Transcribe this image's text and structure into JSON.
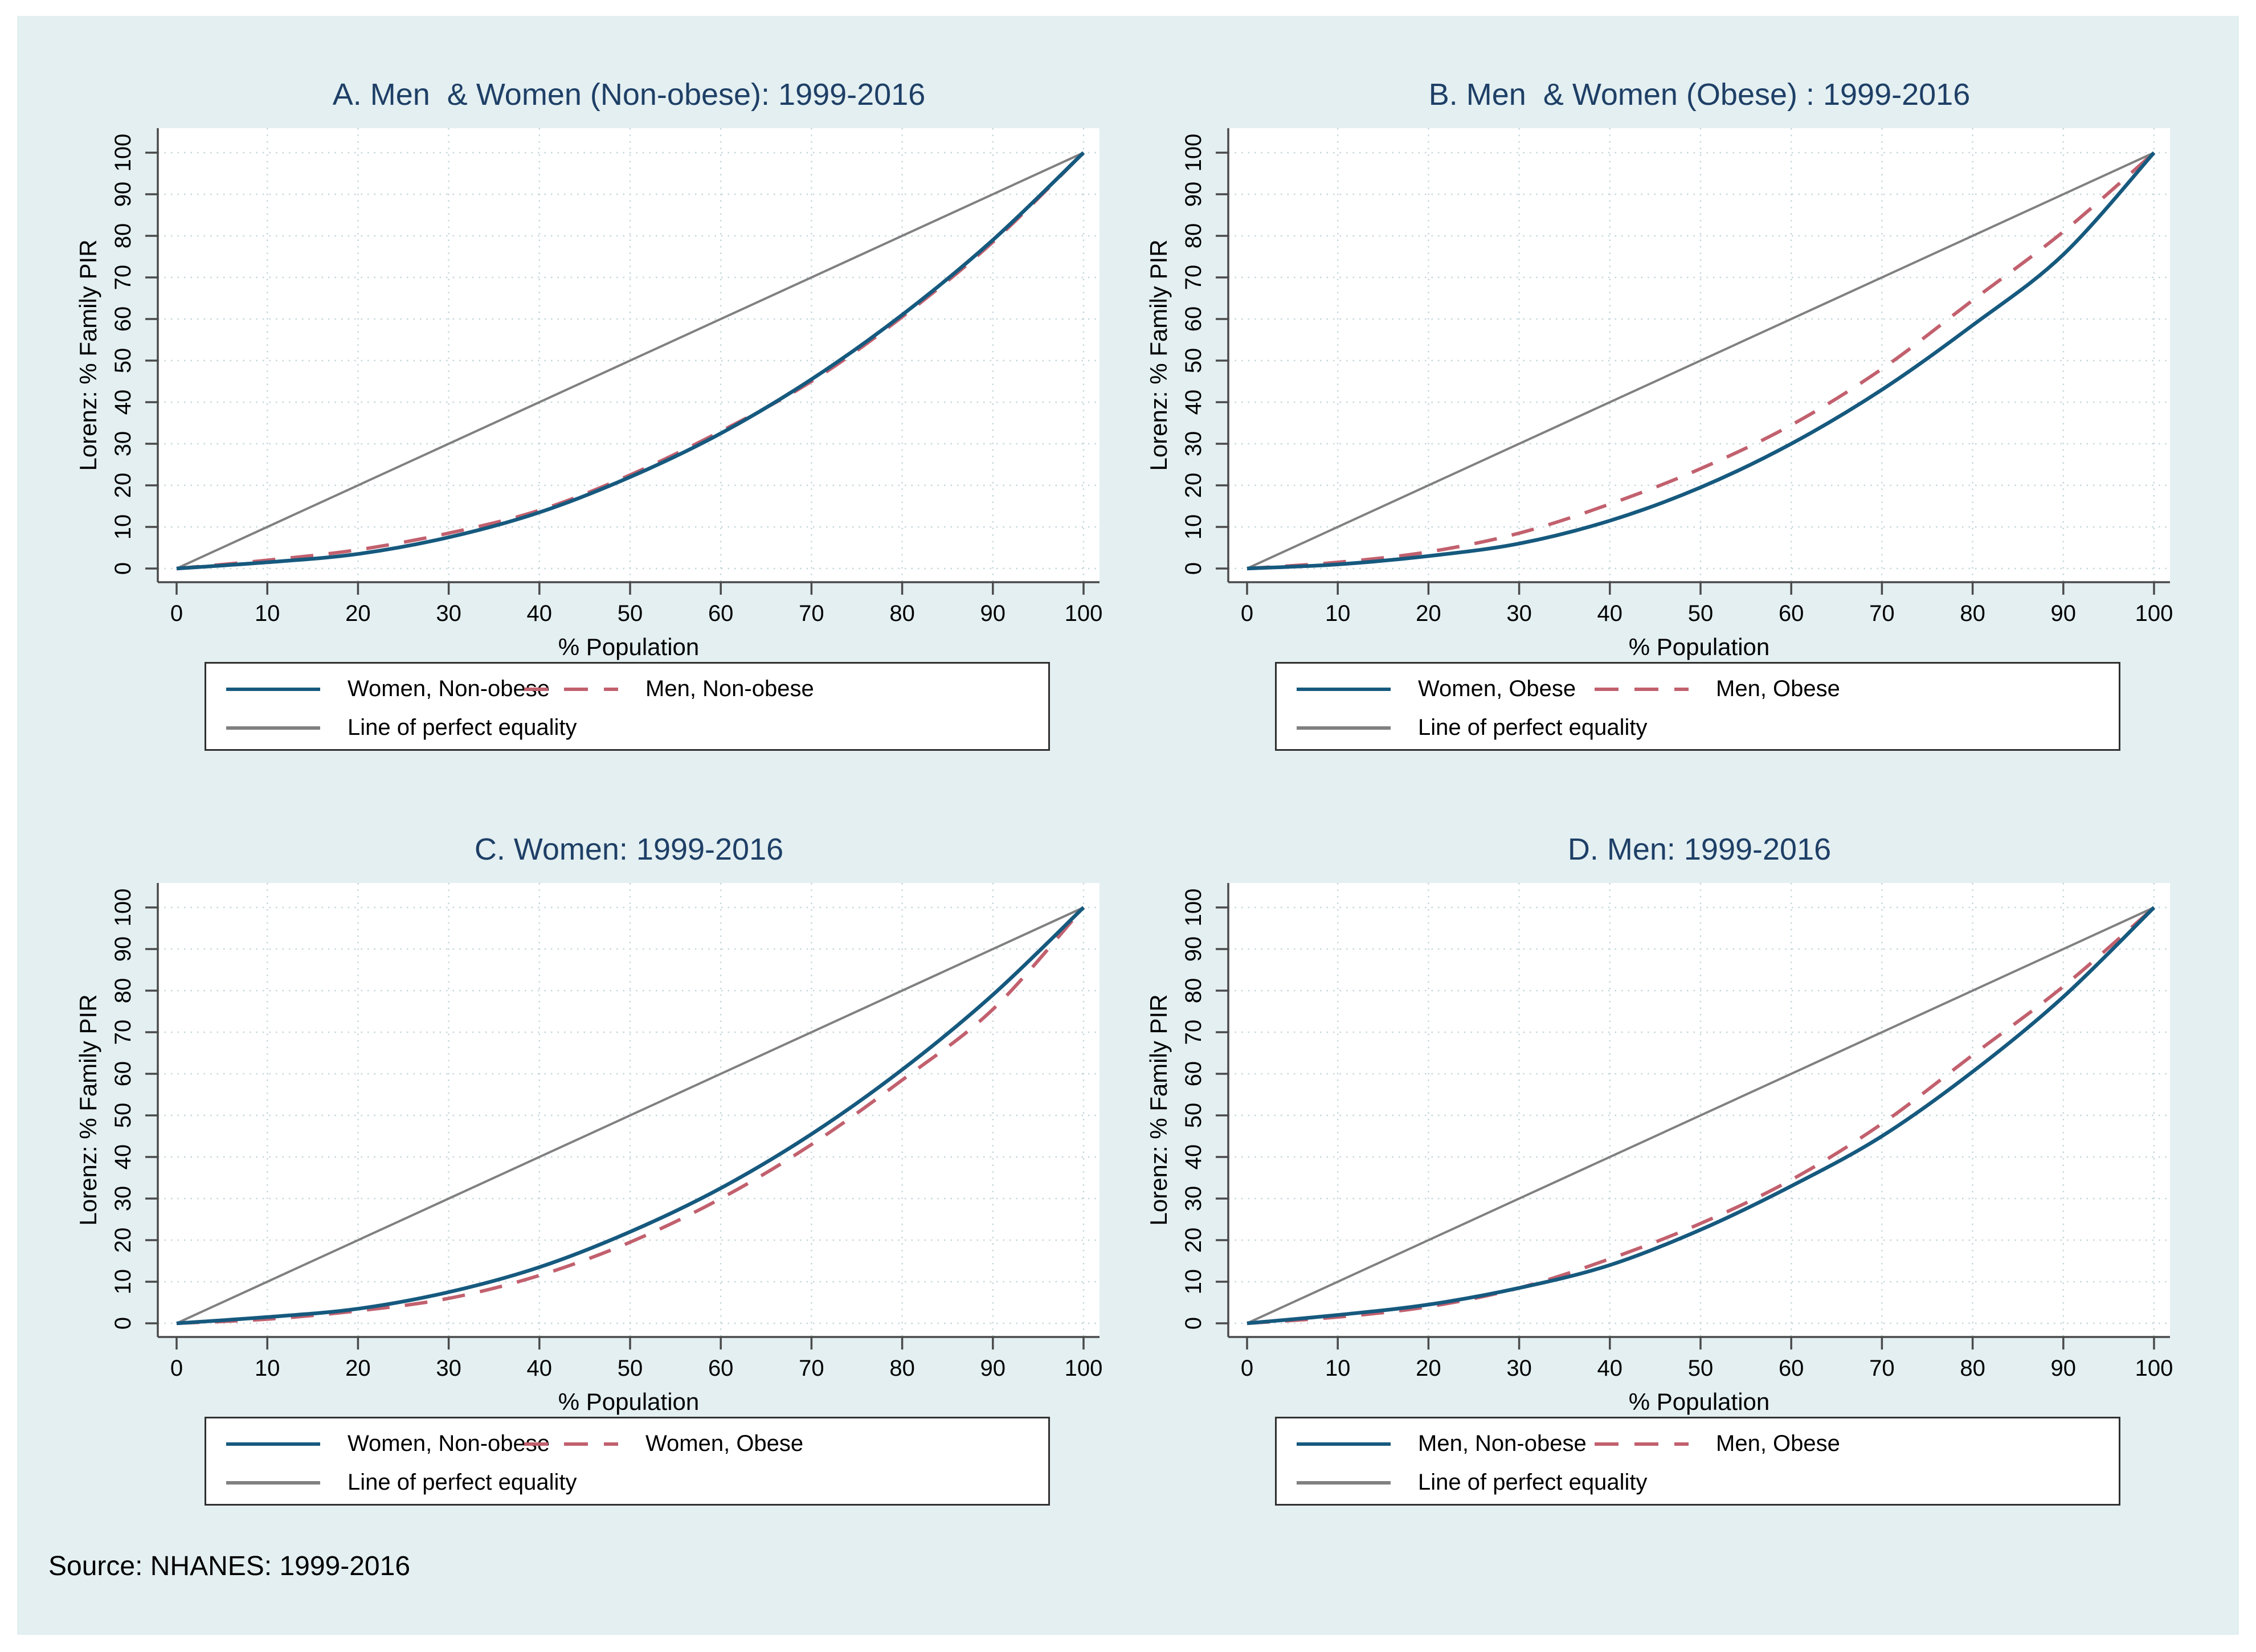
{
  "figure": {
    "page_background": "#ffffff",
    "background": "#e3eff1",
    "plot_background": "#ffffff",
    "axis_color": "#4a4a4a",
    "grid_color": "#c3d6da",
    "title_color": "#1e3f66",
    "tick_label_color": "#000000",
    "legend_border_color": "#303030"
  },
  "source": {
    "text": "Source: NHANES: 1999-2016"
  },
  "chart_data": [
    {
      "panel": "A",
      "type": "line",
      "title": "A. Men  & Women (Non-obese): 1999-2016",
      "xlabel": "% Population",
      "ylabel": "Lorenz: % Family PIR",
      "xlim": [
        0,
        100
      ],
      "ylim": [
        0,
        100
      ],
      "grid": true,
      "legend_position": "below",
      "xticks": [
        0,
        10,
        20,
        30,
        40,
        50,
        60,
        70,
        80,
        90,
        100
      ],
      "yticks": [
        0,
        10,
        20,
        30,
        40,
        50,
        60,
        70,
        80,
        90,
        100
      ],
      "x": [
        0,
        10,
        20,
        30,
        40,
        50,
        60,
        70,
        80,
        90,
        100
      ],
      "series": [
        {
          "name": "Women, Non-obese",
          "color": "#16597e",
          "style": "solid",
          "values": [
            0,
            1.5,
            3.5,
            7.5,
            13.5,
            22,
            32.5,
            45.5,
            61,
            79,
            100
          ]
        },
        {
          "name": "Men, Non-obese",
          "color": "#c2606e",
          "style": "dashed",
          "values": [
            0,
            2,
            4.5,
            8.5,
            14,
            22.5,
            33,
            45,
            60.5,
            78.5,
            100
          ]
        },
        {
          "name": "Line of perfect equality",
          "color": "#808080",
          "style": "solid",
          "values": [
            0,
            10,
            20,
            30,
            40,
            50,
            60,
            70,
            80,
            90,
            100
          ]
        }
      ]
    },
    {
      "panel": "B",
      "type": "line",
      "title": "B. Men  & Women (Obese) : 1999-2016",
      "xlabel": "% Population",
      "ylabel": "Lorenz: % Family PIR",
      "xlim": [
        0,
        100
      ],
      "ylim": [
        0,
        100
      ],
      "grid": true,
      "legend_position": "below",
      "xticks": [
        0,
        10,
        20,
        30,
        40,
        50,
        60,
        70,
        80,
        90,
        100
      ],
      "yticks": [
        0,
        10,
        20,
        30,
        40,
        50,
        60,
        70,
        80,
        90,
        100
      ],
      "x": [
        0,
        10,
        20,
        30,
        40,
        50,
        60,
        70,
        80,
        90,
        100
      ],
      "series": [
        {
          "name": "Women, Obese",
          "color": "#16597e",
          "style": "solid",
          "values": [
            0,
            1,
            3,
            6,
            11.5,
            19.5,
            30,
            43,
            58.5,
            75.5,
            100
          ]
        },
        {
          "name": "Men, Obese",
          "color": "#c2606e",
          "style": "dashed",
          "values": [
            0,
            1.5,
            4,
            8.5,
            15.5,
            24,
            34.5,
            48,
            64.5,
            81,
            100
          ]
        },
        {
          "name": "Line of perfect equality",
          "color": "#808080",
          "style": "solid",
          "values": [
            0,
            10,
            20,
            30,
            40,
            50,
            60,
            70,
            80,
            90,
            100
          ]
        }
      ]
    },
    {
      "panel": "C",
      "type": "line",
      "title": "C. Women: 1999-2016",
      "xlabel": "% Population",
      "ylabel": "Lorenz: % Family PIR",
      "xlim": [
        0,
        100
      ],
      "ylim": [
        0,
        100
      ],
      "grid": true,
      "legend_position": "below",
      "xticks": [
        0,
        10,
        20,
        30,
        40,
        50,
        60,
        70,
        80,
        90,
        100
      ],
      "yticks": [
        0,
        10,
        20,
        30,
        40,
        50,
        60,
        70,
        80,
        90,
        100
      ],
      "x": [
        0,
        10,
        20,
        30,
        40,
        50,
        60,
        70,
        80,
        90,
        100
      ],
      "series": [
        {
          "name": "Women, Non-obese",
          "color": "#16597e",
          "style": "solid",
          "values": [
            0,
            1.5,
            3.5,
            7.5,
            13.5,
            22,
            32.5,
            45.5,
            61,
            79,
            100
          ]
        },
        {
          "name": "Women, Obese",
          "color": "#c2606e",
          "style": "dashed",
          "values": [
            0,
            1,
            3,
            6,
            11.5,
            19.5,
            30,
            43,
            58.5,
            75.5,
            100
          ]
        },
        {
          "name": "Line of perfect equality",
          "color": "#808080",
          "style": "solid",
          "values": [
            0,
            10,
            20,
            30,
            40,
            50,
            60,
            70,
            80,
            90,
            100
          ]
        }
      ]
    },
    {
      "panel": "D",
      "type": "line",
      "title": "D. Men: 1999-2016",
      "xlabel": "% Population",
      "ylabel": "Lorenz: % Family PIR",
      "xlim": [
        0,
        100
      ],
      "ylim": [
        0,
        100
      ],
      "grid": true,
      "legend_position": "below",
      "xticks": [
        0,
        10,
        20,
        30,
        40,
        50,
        60,
        70,
        80,
        90,
        100
      ],
      "yticks": [
        0,
        10,
        20,
        30,
        40,
        50,
        60,
        70,
        80,
        90,
        100
      ],
      "x": [
        0,
        10,
        20,
        30,
        40,
        50,
        60,
        70,
        80,
        90,
        100
      ],
      "series": [
        {
          "name": "Men, Non-obese",
          "color": "#16597e",
          "style": "solid",
          "values": [
            0,
            2,
            4.5,
            8.5,
            14,
            22.5,
            33,
            45,
            60.5,
            78.5,
            100
          ]
        },
        {
          "name": "Men, Obese",
          "color": "#c2606e",
          "style": "dashed",
          "values": [
            0,
            1.5,
            4,
            8.5,
            15.5,
            24,
            34.5,
            48,
            64.5,
            81,
            100
          ]
        },
        {
          "name": "Line of perfect equality",
          "color": "#808080",
          "style": "solid",
          "values": [
            0,
            10,
            20,
            30,
            40,
            50,
            60,
            70,
            80,
            90,
            100
          ]
        }
      ]
    }
  ]
}
